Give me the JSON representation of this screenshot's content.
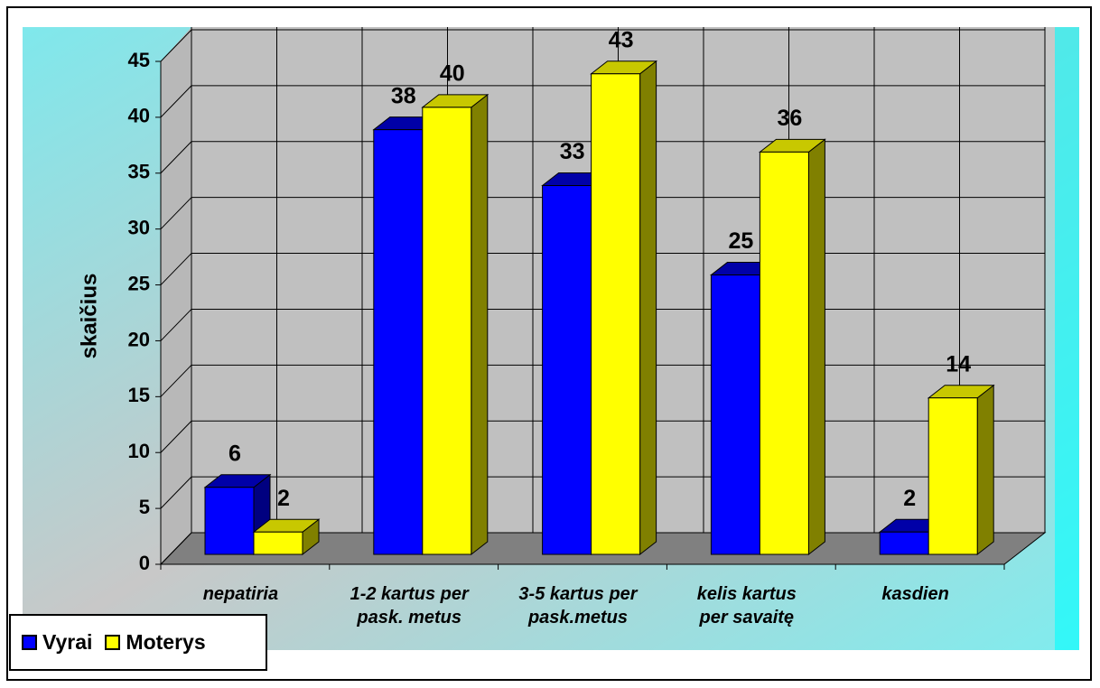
{
  "chart_data": {
    "type": "bar3d",
    "ylabel": "skaičius",
    "categories": [
      "nepatiria",
      "1-2 kartus per\npask. metus",
      "3-5 kartus per\npask.metus",
      "kelis kartus\nper savaitę",
      "kasdien"
    ],
    "series": [
      {
        "name": "Vyrai",
        "color": "#0000ff",
        "values": [
          6,
          38,
          33,
          25,
          2
        ]
      },
      {
        "name": "Moterys",
        "color": "#ffff00",
        "values": [
          2,
          40,
          43,
          36,
          14
        ]
      }
    ],
    "ylim": [
      0,
      45
    ],
    "yticks": [
      0,
      5,
      10,
      15,
      20,
      25,
      30,
      35,
      40,
      45
    ],
    "grid": true,
    "legend": "bottom-left"
  }
}
